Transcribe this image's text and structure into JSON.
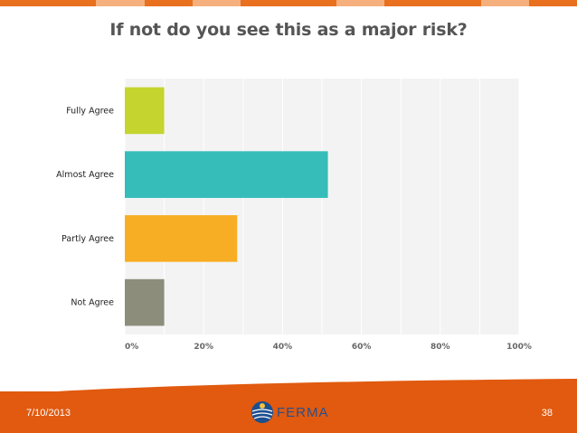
{
  "slide": {
    "title": "If not do you see this as a major risk?",
    "date": "7/10/2013",
    "page_number": "38",
    "logo_text": "FERMA",
    "colors": {
      "footer": "#e15a0f",
      "strip_dark": "#e8701f",
      "strip_light": "#f6b07e"
    }
  },
  "chart_data": {
    "type": "bar",
    "orientation": "horizontal",
    "title": "If not do you see this as a major risk?",
    "categories": [
      "Fully Agree",
      "Almost Agree",
      "Partly Agree",
      "Not Agree"
    ],
    "values": [
      10,
      51.5,
      28.5,
      10
    ],
    "unit": "%",
    "colors": [
      "#c5d42e",
      "#36bdb9",
      "#f8ae24",
      "#8d8d7c"
    ],
    "xlim": [
      0,
      100
    ],
    "x_ticks": [
      "0%",
      "20%",
      "40%",
      "60%",
      "80%",
      "100%"
    ],
    "grid": true,
    "legend": "none"
  }
}
